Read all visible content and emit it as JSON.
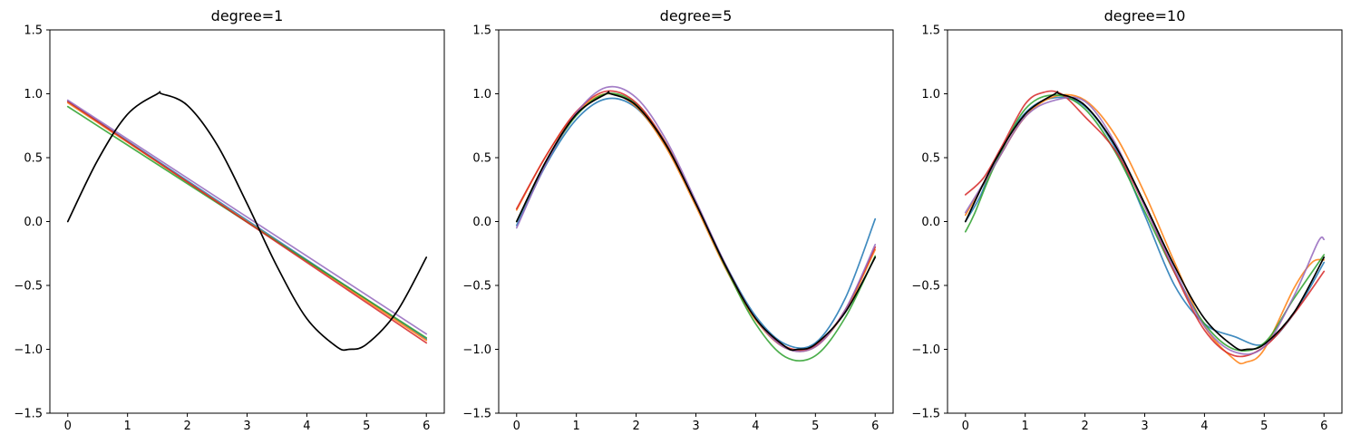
{
  "chart_data": [
    {
      "type": "line",
      "title": "degree=1",
      "xlabel": "",
      "ylabel": "",
      "xlim": [
        -0.3,
        6.3
      ],
      "ylim": [
        -1.5,
        1.5
      ],
      "xticks": [
        "0",
        "1",
        "2",
        "3",
        "4",
        "5",
        "6"
      ],
      "yticks": [
        "−1.5",
        "−1.0",
        "−0.5",
        "0.0",
        "0.5",
        "1.0",
        "1.5"
      ],
      "grid": false,
      "series": [
        {
          "color": "#1f77b4",
          "x": [
            0,
            6
          ],
          "y": [
            0.94,
            -0.92
          ]
        },
        {
          "color": "#ff7f0e",
          "x": [
            0,
            6
          ],
          "y": [
            0.93,
            -0.93
          ]
        },
        {
          "color": "#2ca02c",
          "x": [
            0,
            6
          ],
          "y": [
            0.9,
            -0.91
          ]
        },
        {
          "color": "#d62728",
          "x": [
            0,
            6
          ],
          "y": [
            0.94,
            -0.95
          ]
        },
        {
          "color": "#9467bd",
          "x": [
            0,
            6
          ],
          "y": [
            0.95,
            -0.88
          ]
        },
        {
          "color": "#000000",
          "x": [
            0,
            0.5,
            1,
            1.5,
            1.57,
            2,
            2.5,
            3,
            3.5,
            4,
            4.5,
            4.71,
            5,
            5.5,
            6
          ],
          "y": [
            0,
            0.48,
            0.84,
            1.0,
            1.0,
            0.91,
            0.6,
            0.14,
            -0.35,
            -0.76,
            -0.98,
            -1.0,
            -0.96,
            -0.71,
            -0.28
          ]
        }
      ]
    },
    {
      "type": "line",
      "title": "degree=5",
      "xlabel": "",
      "ylabel": "",
      "xlim": [
        -0.3,
        6.3
      ],
      "ylim": [
        -1.5,
        1.5
      ],
      "xticks": [
        "0",
        "1",
        "2",
        "3",
        "4",
        "5",
        "6"
      ],
      "yticks": [
        "−1.5",
        "−1.0",
        "−0.5",
        "0.0",
        "0.5",
        "1.0",
        "1.5"
      ],
      "grid": false,
      "series": [
        {
          "color": "#1f77b4",
          "x": [
            0,
            0.5,
            1,
            1.5,
            2,
            2.5,
            3,
            3.5,
            4,
            4.5,
            5,
            5.5,
            6
          ],
          "y": [
            -0.03,
            0.45,
            0.8,
            0.96,
            0.89,
            0.59,
            0.14,
            -0.34,
            -0.74,
            -0.96,
            -0.95,
            -0.6,
            0.02
          ]
        },
        {
          "color": "#ff7f0e",
          "x": [
            0,
            0.5,
            1,
            1.5,
            2,
            2.5,
            3,
            3.5,
            4,
            4.5,
            5,
            5.5,
            6
          ],
          "y": [
            0.09,
            0.52,
            0.85,
            1.0,
            0.9,
            0.58,
            0.12,
            -0.37,
            -0.77,
            -0.99,
            -0.98,
            -0.7,
            -0.22
          ]
        },
        {
          "color": "#2ca02c",
          "x": [
            0,
            0.5,
            1,
            1.5,
            2,
            2.5,
            3,
            3.5,
            4,
            4.5,
            5,
            5.5,
            6
          ],
          "y": [
            0.0,
            0.47,
            0.83,
            1.0,
            0.92,
            0.61,
            0.14,
            -0.36,
            -0.8,
            -1.06,
            -1.05,
            -0.75,
            -0.27
          ]
        },
        {
          "color": "#d62728",
          "x": [
            0,
            0.5,
            1,
            1.5,
            2,
            2.5,
            3,
            3.5,
            4,
            4.5,
            5,
            5.5,
            6
          ],
          "y": [
            0.1,
            0.52,
            0.86,
            1.02,
            0.93,
            0.61,
            0.14,
            -0.35,
            -0.76,
            -0.98,
            -0.97,
            -0.69,
            -0.2
          ]
        },
        {
          "color": "#9467bd",
          "x": [
            0,
            0.5,
            1,
            1.5,
            2,
            2.5,
            3,
            3.5,
            4,
            4.5,
            5,
            5.5,
            6
          ],
          "y": [
            -0.05,
            0.46,
            0.85,
            1.05,
            0.97,
            0.64,
            0.16,
            -0.34,
            -0.76,
            -0.99,
            -0.98,
            -0.69,
            -0.18
          ]
        },
        {
          "color": "#000000",
          "x": [
            0,
            0.5,
            1,
            1.5,
            1.57,
            2,
            2.5,
            3,
            3.5,
            4,
            4.5,
            4.71,
            5,
            5.5,
            6
          ],
          "y": [
            0,
            0.48,
            0.84,
            1.0,
            1.0,
            0.91,
            0.6,
            0.14,
            -0.35,
            -0.76,
            -0.98,
            -1.0,
            -0.96,
            -0.71,
            -0.28
          ]
        }
      ]
    },
    {
      "type": "line",
      "title": "degree=10",
      "xlabel": "",
      "ylabel": "",
      "xlim": [
        -0.3,
        6.3
      ],
      "ylim": [
        -1.5,
        1.5
      ],
      "xticks": [
        "0",
        "1",
        "2",
        "3",
        "4",
        "5",
        "6"
      ],
      "yticks": [
        "−1.5",
        "−1.0",
        "−0.5",
        "0.0",
        "0.5",
        "1.0",
        "1.5"
      ],
      "grid": false,
      "series": [
        {
          "color": "#1f77b4",
          "x": [
            0,
            0.25,
            0.5,
            1,
            1.5,
            2,
            2.5,
            3,
            3.5,
            4,
            4.5,
            5,
            5.5,
            6
          ],
          "y": [
            0.0,
            0.2,
            0.48,
            0.85,
            0.97,
            0.9,
            0.58,
            0.05,
            -0.5,
            -0.8,
            -0.9,
            -0.96,
            -0.72,
            -0.32
          ]
        },
        {
          "color": "#ff7f0e",
          "x": [
            0,
            0.5,
            1,
            1.5,
            2,
            2.5,
            3,
            3.5,
            4,
            4.5,
            4.7,
            5,
            5.5,
            5.8,
            6
          ],
          "y": [
            0.05,
            0.45,
            0.82,
            0.98,
            0.95,
            0.68,
            0.22,
            -0.32,
            -0.82,
            -1.08,
            -1.1,
            -1.0,
            -0.52,
            -0.32,
            -0.3
          ]
        },
        {
          "color": "#2ca02c",
          "x": [
            0,
            0.15,
            0.5,
            1,
            1.5,
            2,
            2.5,
            3,
            3.5,
            4,
            4.5,
            5,
            5.5,
            6
          ],
          "y": [
            -0.08,
            0.06,
            0.45,
            0.88,
            0.99,
            0.88,
            0.55,
            0.08,
            -0.4,
            -0.8,
            -1.0,
            -0.95,
            -0.6,
            -0.26
          ]
        },
        {
          "color": "#d62728",
          "x": [
            0,
            0.3,
            0.6,
            1,
            1.3,
            1.6,
            2,
            2.5,
            3,
            3.5,
            4,
            4.5,
            5,
            5.5,
            6
          ],
          "y": [
            0.21,
            0.34,
            0.58,
            0.92,
            1.01,
            1.0,
            0.82,
            0.56,
            0.12,
            -0.4,
            -0.85,
            -1.05,
            -0.98,
            -0.72,
            -0.39
          ]
        },
        {
          "color": "#9467bd",
          "x": [
            0,
            0.5,
            1,
            1.5,
            2,
            2.5,
            3,
            3.5,
            4,
            4.5,
            5,
            5.5,
            5.9,
            6
          ],
          "y": [
            0.07,
            0.45,
            0.82,
            0.95,
            0.94,
            0.62,
            0.12,
            -0.38,
            -0.82,
            -1.02,
            -0.98,
            -0.58,
            -0.16,
            -0.14
          ]
        },
        {
          "color": "#000000",
          "x": [
            0,
            0.5,
            1,
            1.5,
            1.57,
            2,
            2.5,
            3,
            3.5,
            4,
            4.5,
            4.71,
            5,
            5.5,
            6
          ],
          "y": [
            0,
            0.48,
            0.84,
            1.0,
            1.0,
            0.91,
            0.6,
            0.14,
            -0.35,
            -0.76,
            -0.98,
            -1.0,
            -0.96,
            -0.71,
            -0.28
          ]
        }
      ]
    }
  ]
}
